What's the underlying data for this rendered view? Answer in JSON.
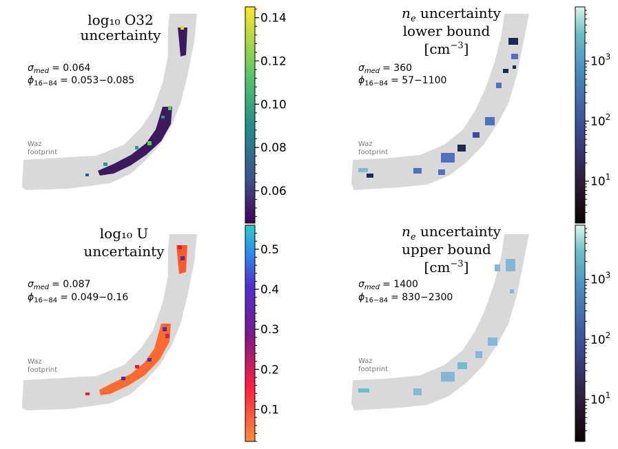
{
  "chart_data": [
    {
      "type": "heatmap",
      "title_line1": "log₁₀ O32",
      "title_line2": "uncertainty",
      "stat_median_label": "σ",
      "stat_median_sub": "med",
      "stat_median_value": "= 0.064",
      "stat_range_label": "ϕ",
      "stat_range_sub": "16−84",
      "stat_range_value": "= 0.053−0.085",
      "footprint_label_1": "Waz",
      "footprint_label_2": "footprint",
      "colormap": "viridis",
      "colorbar_scale": "linear",
      "colorbar_range": [
        0.045,
        0.145
      ],
      "colorbar_ticks": [
        0.06,
        0.08,
        0.1,
        0.12,
        0.14
      ],
      "colorbar_tick_labels": [
        "0.06",
        "0.08",
        "0.10",
        "0.12",
        "0.14"
      ]
    },
    {
      "type": "heatmap",
      "title_line1": "n",
      "title_sub": "e",
      "title_line1_rest": " uncertainty",
      "title_line2": "lower bound",
      "title_line3": "[cm",
      "title_line3_sup": "−3",
      "title_line3_end": "]",
      "stat_median_label": "σ",
      "stat_median_sub": "med",
      "stat_median_value": "= 360",
      "stat_range_label": "ϕ",
      "stat_range_sub": "16−84",
      "stat_range_value": "= 57−1100",
      "footprint_label_1": "Waz",
      "footprint_label_2": "footprint",
      "colormap": "mako",
      "colorbar_scale": "log",
      "colorbar_range": [
        2,
        8000
      ],
      "colorbar_ticks": [
        10,
        100,
        1000
      ],
      "colorbar_tick_labels": [
        "10",
        "10",
        "10"
      ],
      "colorbar_tick_exponents": [
        "1",
        "2",
        "3"
      ]
    },
    {
      "type": "heatmap",
      "title_line1": "log₁₀ U",
      "title_line2": "uncertainty",
      "stat_median_label": "σ",
      "stat_median_sub": "med",
      "stat_median_value": "= 0.087",
      "stat_range_label": "ϕ",
      "stat_range_sub": "16−84",
      "stat_range_value": "= 0.049−0.16",
      "footprint_label_1": "Waz",
      "footprint_label_2": "footprint",
      "colormap": "rainbow",
      "colorbar_scale": "linear",
      "colorbar_range": [
        0.02,
        0.56
      ],
      "colorbar_ticks": [
        0.1,
        0.2,
        0.3,
        0.4,
        0.5
      ],
      "colorbar_tick_labels": [
        "0.1",
        "0.2",
        "0.3",
        "0.4",
        "0.5"
      ]
    },
    {
      "type": "heatmap",
      "title_line1": "n",
      "title_sub": "e",
      "title_line1_rest": " uncertainty",
      "title_line2": "upper bound",
      "title_line3": "[cm",
      "title_line3_sup": "−3",
      "title_line3_end": "]",
      "stat_median_label": "σ",
      "stat_median_sub": "med",
      "stat_median_value": "= 1400",
      "stat_range_label": "ϕ",
      "stat_range_sub": "16−84",
      "stat_range_value": "= 830−2300",
      "footprint_label_1": "Waz",
      "footprint_label_2": "footprint",
      "colormap": "mako",
      "colorbar_scale": "log",
      "colorbar_range": [
        2,
        8000
      ],
      "colorbar_ticks": [
        10,
        100,
        1000
      ],
      "colorbar_tick_labels": [
        "10",
        "10",
        "10"
      ],
      "colorbar_tick_exponents": [
        "1",
        "2",
        "3"
      ]
    }
  ],
  "colors": {
    "footprint": "#d9d9d9",
    "o32_dark": "#3b1a5e",
    "o32_mid": "#2c5b8a",
    "o32_teal": "#1f9e89",
    "o32_yellow": "#d8e219",
    "ne_dark": "#1c2a4f",
    "ne_blue": "#4f6fbf",
    "ne_light": "#84b7d6",
    "u_orange": "#ff5a2a",
    "u_red": "#e02030",
    "u_purple": "#5a2a9a"
  }
}
